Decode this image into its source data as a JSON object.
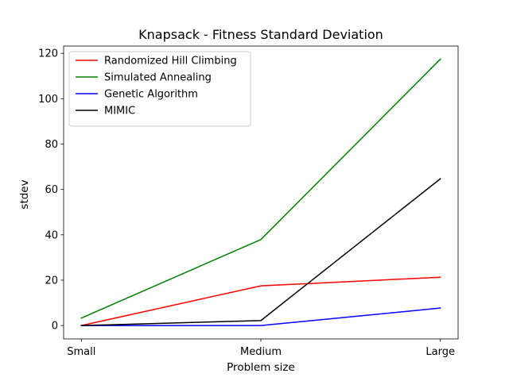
{
  "chart_data": {
    "type": "line",
    "title": "Knapsack - Fitness Standard Deviation",
    "xlabel": "Problem size",
    "ylabel": "stdev",
    "categories": [
      "Small",
      "Medium",
      "Large"
    ],
    "ylim": [
      -5.9,
      123.2
    ],
    "yticks": [
      0,
      20,
      40,
      60,
      80,
      100,
      120
    ],
    "grid": false,
    "legend_position": "upper-left",
    "series": [
      {
        "name": "Randomized Hill Climbing",
        "color": "#ff0000",
        "values": [
          0.0,
          17.5,
          21.3
        ]
      },
      {
        "name": "Simulated Annealing",
        "color": "#008000",
        "values": [
          3.3,
          37.9,
          117.4
        ]
      },
      {
        "name": "Genetic Algorithm",
        "color": "#0000ff",
        "values": [
          0.0,
          0.0,
          7.7
        ]
      },
      {
        "name": "MIMIC",
        "color": "#000000",
        "values": [
          0.0,
          2.2,
          64.7
        ]
      }
    ]
  }
}
